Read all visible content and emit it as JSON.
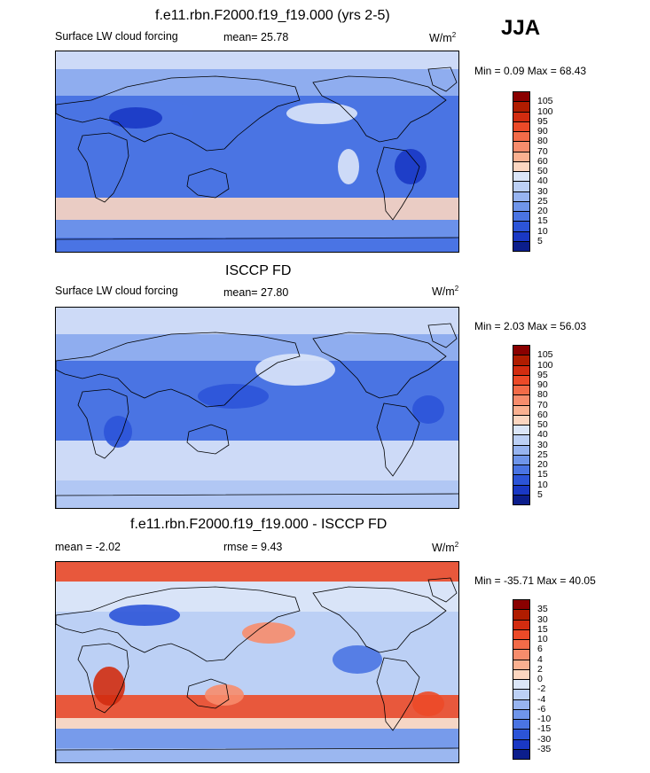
{
  "season": "JJA",
  "panels": [
    {
      "title": "f.e11.rbn.F2000.f19_f19.000 (yrs 2-5)",
      "left": "Surface LW cloud forcing",
      "center": "mean=  25.78",
      "units": "W/m",
      "units_sup": "2",
      "minmax": "Min =   0.09 Max =  68.43",
      "type": "field"
    },
    {
      "title": "ISCCP FD",
      "left": "Surface LW cloud forcing",
      "center": "mean=  27.80",
      "units": "W/m",
      "units_sup": "2",
      "minmax": "Min =   2.03 Max =  56.03",
      "type": "field"
    },
    {
      "title": "f.e11.rbn.F2000.f19_f19.000 - ISCCP FD",
      "left": "mean =  -2.02",
      "center": "rmse =   9.43",
      "units": "W/m",
      "units_sup": "2",
      "minmax": "Min = -35.71 Max =  40.05",
      "type": "diff"
    }
  ],
  "colorbars": {
    "field": {
      "labels": [
        "105",
        "100",
        "95",
        "90",
        "80",
        "70",
        "60",
        "50",
        "40",
        "30",
        "25",
        "20",
        "15",
        "10",
        "5"
      ],
      "colors": [
        "#8a0000",
        "#b01c00",
        "#d22c10",
        "#ec4a28",
        "#f36b48",
        "#f78c6c",
        "#fab090",
        "#fcd6c0",
        "#dbe6f8",
        "#bcd0f5",
        "#97b4f0",
        "#6f95ea",
        "#4a74e3",
        "#2c54d8",
        "#1a38c4",
        "#0c1e8c"
      ]
    },
    "diff": {
      "labels": [
        "35",
        "30",
        "15",
        "10",
        "6",
        "4",
        "2",
        "0",
        "-2",
        "-4",
        "-6",
        "-10",
        "-15",
        "-30",
        "-35"
      ],
      "colors": [
        "#8a0000",
        "#b01c00",
        "#d22c10",
        "#ec4a28",
        "#f36b48",
        "#f78c6c",
        "#fab090",
        "#fcd6c0",
        "#dbe6f8",
        "#bcd0f5",
        "#97b4f0",
        "#6f95ea",
        "#4a74e3",
        "#2c54d8",
        "#1a38c4",
        "#0c1e8c"
      ]
    }
  },
  "chart_data": [
    {
      "type": "heatmap",
      "title": "f.e11.rbn.F2000.f19_f19.000 (yrs 2-5)",
      "variable": "Surface LW cloud forcing",
      "units": "W/m2",
      "mean": 25.78,
      "min": 0.09,
      "max": 68.43,
      "contour_levels": [
        5,
        10,
        15,
        20,
        25,
        30,
        40,
        50,
        60,
        70,
        80,
        90,
        95,
        100,
        105
      ]
    },
    {
      "type": "heatmap",
      "title": "ISCCP FD",
      "variable": "Surface LW cloud forcing",
      "units": "W/m2",
      "mean": 27.8,
      "min": 2.03,
      "max": 56.03,
      "contour_levels": [
        5,
        10,
        15,
        20,
        25,
        30,
        40,
        50,
        60,
        70,
        80,
        90,
        95,
        100,
        105
      ]
    },
    {
      "type": "heatmap",
      "title": "f.e11.rbn.F2000.f19_f19.000 - ISCCP FD",
      "units": "W/m2",
      "mean": -2.02,
      "rmse": 9.43,
      "min": -35.71,
      "max": 40.05,
      "contour_levels": [
        -35,
        -30,
        -15,
        -10,
        -6,
        -4,
        -2,
        0,
        2,
        4,
        6,
        10,
        15,
        30,
        35
      ]
    }
  ]
}
